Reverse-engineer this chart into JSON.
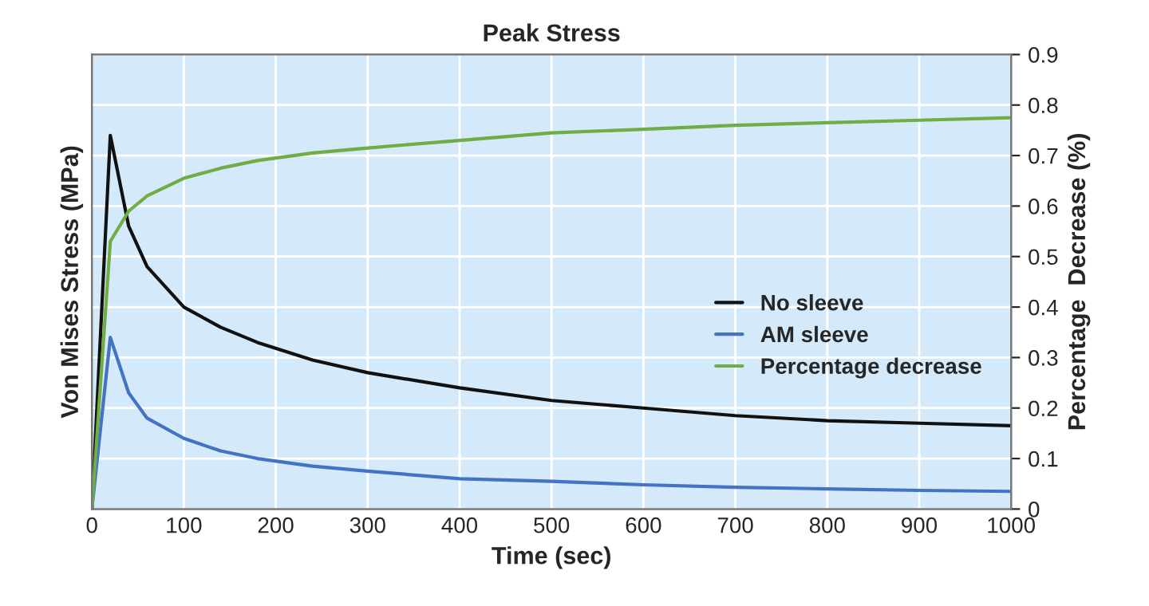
{
  "chart_data": {
    "type": "line",
    "title": "Peak Stress",
    "xlabel": "Time (sec)",
    "ylabel": "Von Mises Stress (MPa)",
    "y2label": "Percentage  Decrease (%)",
    "x": [
      0,
      20,
      40,
      60,
      100,
      140,
      180,
      240,
      300,
      400,
      500,
      600,
      700,
      800,
      900,
      1000
    ],
    "series": [
      {
        "name": "No sleeve",
        "color": "#111111",
        "axis": "y2",
        "values": [
          0,
          0.74,
          0.56,
          0.48,
          0.4,
          0.36,
          0.33,
          0.295,
          0.27,
          0.24,
          0.215,
          0.2,
          0.185,
          0.175,
          0.17,
          0.165
        ]
      },
      {
        "name": "AM sleeve",
        "color": "#4472c4",
        "axis": "y2",
        "values": [
          0,
          0.34,
          0.23,
          0.18,
          0.14,
          0.115,
          0.1,
          0.085,
          0.075,
          0.06,
          0.055,
          0.048,
          0.043,
          0.04,
          0.037,
          0.035
        ]
      },
      {
        "name": "Percentage decrease",
        "color": "#70ad47",
        "axis": "y2",
        "values": [
          0,
          0.53,
          0.59,
          0.62,
          0.655,
          0.675,
          0.69,
          0.705,
          0.715,
          0.73,
          0.745,
          0.752,
          0.76,
          0.765,
          0.77,
          0.775
        ]
      }
    ],
    "xlim": [
      0,
      1000
    ],
    "xticks": [
      0,
      100,
      200,
      300,
      400,
      500,
      600,
      700,
      800,
      900,
      1000
    ],
    "y2lim": [
      0,
      0.9
    ],
    "y2ticks": [
      0,
      0.1,
      0.2,
      0.3,
      0.4,
      0.5,
      0.6,
      0.7,
      0.8,
      0.9
    ],
    "grid": true,
    "legend": "right",
    "marker": "none",
    "line_style": "solid"
  }
}
